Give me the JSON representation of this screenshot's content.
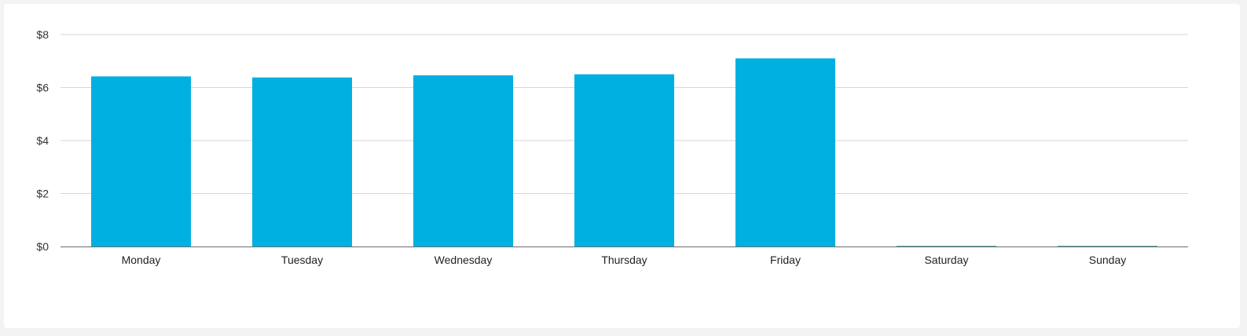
{
  "chart_data": {
    "type": "bar",
    "categories": [
      "Monday",
      "Tuesday",
      "Wednesday",
      "Thursday",
      "Friday",
      "Saturday",
      "Sunday"
    ],
    "values": [
      6.42,
      6.38,
      6.46,
      6.5,
      7.1,
      0,
      0
    ],
    "ylim": [
      0,
      8
    ],
    "yticks": [
      0,
      2,
      4,
      6,
      8
    ],
    "ytick_labels": [
      "$0",
      "$2",
      "$4",
      "$6",
      "$8"
    ],
    "grid": true,
    "legend": "none",
    "bar_color": "#00b0e0",
    "zero_bar_color": "#5fa7b4"
  }
}
